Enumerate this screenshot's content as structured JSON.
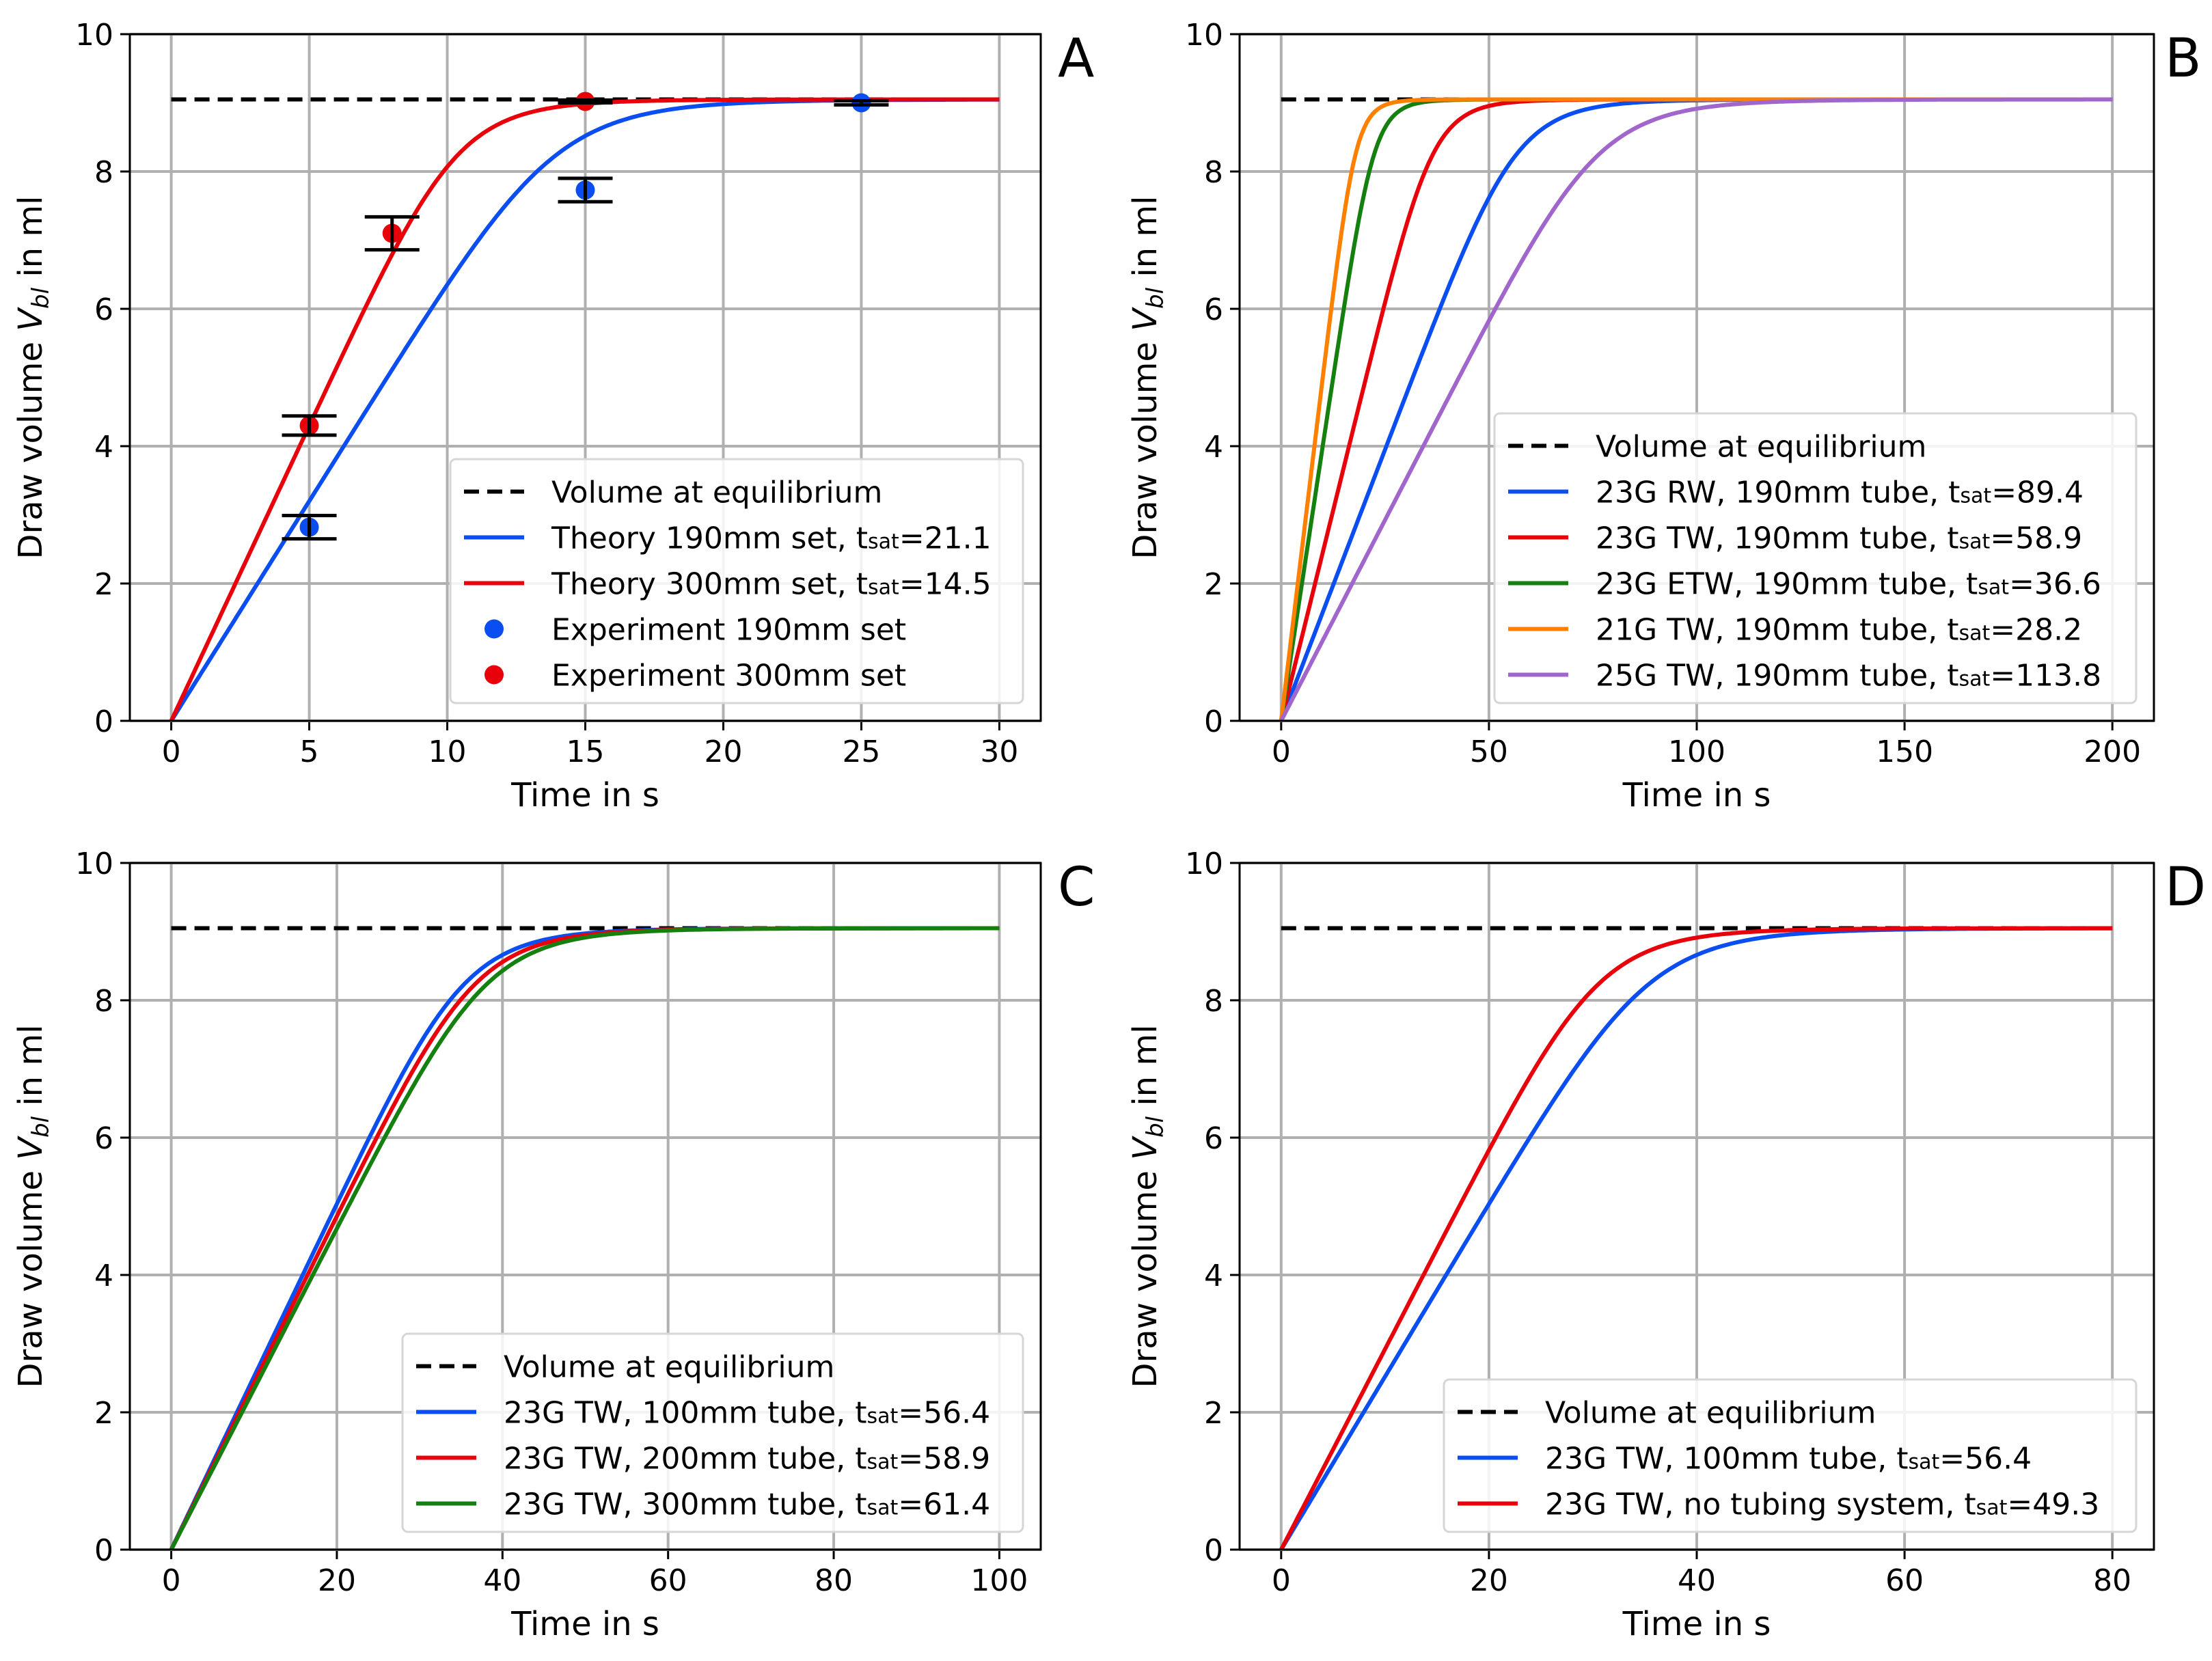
{
  "chart_data": [
    {
      "panel": "A",
      "type": "line",
      "xlabel": "Time in s",
      "ylabel": {
        "prefix": "Draw volume ",
        "var": "V",
        "sub": "bl",
        "suffix": " in ml"
      },
      "xlim": [
        -1.5,
        31.5
      ],
      "ylim": [
        0,
        10
      ],
      "xticks": [
        0,
        5,
        10,
        15,
        20,
        25,
        30
      ],
      "yticks": [
        0,
        2,
        4,
        6,
        8,
        10
      ],
      "grid": true,
      "legend_position": "bottom-right",
      "equilibrium": {
        "label": "Volume at equilibrium",
        "value": 9.05,
        "x_range": [
          0,
          30
        ],
        "color": "#000000"
      },
      "series": [
        {
          "name": "Theory 190mm set, tsat=21.1",
          "color": "#0a4df0",
          "tsat": 21.1,
          "initial_slope": 0.64,
          "x_range": [
            0,
            30
          ]
        },
        {
          "name": "Theory 300mm set, tsat=14.5",
          "color": "#e8000b",
          "tsat": 14.5,
          "initial_slope": 0.86,
          "x_range": [
            0,
            30
          ]
        }
      ],
      "scatter": [
        {
          "name": "Experiment 190mm set",
          "color": "#0a4df0",
          "points": [
            {
              "x": 5,
              "y": 2.82,
              "err": 0.17
            },
            {
              "x": 15,
              "y": 7.73,
              "err": 0.17
            },
            {
              "x": 25,
              "y": 9.0,
              "err": 0.03
            }
          ]
        },
        {
          "name": "Experiment 300mm set",
          "color": "#e8000b",
          "points": [
            {
              "x": 5,
              "y": 4.3,
              "err": 0.14
            },
            {
              "x": 8,
              "y": 7.1,
              "err": 0.24
            },
            {
              "x": 15,
              "y": 9.02,
              "err": 0.02
            }
          ]
        }
      ]
    },
    {
      "panel": "B",
      "type": "line",
      "xlabel": "Time in s",
      "ylabel": {
        "prefix": "Draw volume ",
        "var": "V",
        "sub": "bl",
        "suffix": " in ml"
      },
      "xlim": [
        -10,
        210
      ],
      "ylim": [
        0,
        10
      ],
      "xticks": [
        0,
        50,
        100,
        150,
        200
      ],
      "yticks": [
        0,
        2,
        4,
        6,
        8,
        10
      ],
      "grid": true,
      "legend_position": "bottom-right",
      "equilibrium": {
        "label": "Volume at equilibrium",
        "value": 9.05,
        "x_range": [
          0,
          200
        ],
        "color": "#000000"
      },
      "series": [
        {
          "name": "23G RW, 190mm tube, tsat=89.4",
          "color": "#0a4df0",
          "tsat": 89.4,
          "initial_slope": 0.158,
          "x_range": [
            0,
            200
          ]
        },
        {
          "name": "23G TW, 190mm tube, tsat=58.9",
          "color": "#e8000b",
          "tsat": 58.9,
          "initial_slope": 0.245,
          "x_range": [
            0,
            200
          ]
        },
        {
          "name": "23G ETW, 190mm tube, tsat=36.6",
          "color": "#15800f",
          "tsat": 36.6,
          "initial_slope": 0.4,
          "x_range": [
            0,
            200
          ]
        },
        {
          "name": "21G TW, 190mm tube, tsat=28.2",
          "color": "#ff8000",
          "tsat": 28.2,
          "initial_slope": 0.5,
          "x_range": [
            0,
            200
          ]
        },
        {
          "name": "25G TW, 190mm tube, tsat=113.8",
          "color": "#a066cc",
          "tsat": 113.8,
          "initial_slope": 0.117,
          "x_range": [
            0,
            200
          ]
        }
      ]
    },
    {
      "panel": "C",
      "type": "line",
      "xlabel": "Time in s",
      "ylabel": {
        "prefix": "Draw volume ",
        "var": "V",
        "sub": "bl",
        "suffix": " in ml"
      },
      "xlim": [
        -5,
        105
      ],
      "ylim": [
        0,
        10
      ],
      "xticks": [
        0,
        20,
        40,
        60,
        80,
        100
      ],
      "yticks": [
        0,
        2,
        4,
        6,
        8,
        10
      ],
      "grid": true,
      "legend_position": "bottom-right",
      "equilibrium": {
        "label": "Volume at equilibrium",
        "value": 9.05,
        "x_range": [
          0,
          100
        ],
        "color": "#000000"
      },
      "series": [
        {
          "name": "23G TW, 100mm tube, tsat=56.4",
          "color": "#0a4df0",
          "tsat": 56.4,
          "initial_slope": 0.252,
          "x_range": [
            0,
            100
          ]
        },
        {
          "name": "23G TW, 200mm tube, tsat=58.9",
          "color": "#e8000b",
          "tsat": 58.9,
          "initial_slope": 0.243,
          "x_range": [
            0,
            100
          ]
        },
        {
          "name": "23G TW, 300mm tube, tsat=61.4",
          "color": "#15800f",
          "tsat": 61.4,
          "initial_slope": 0.234,
          "x_range": [
            0,
            100
          ]
        }
      ]
    },
    {
      "panel": "D",
      "type": "line",
      "xlabel": "Time in s",
      "ylabel": {
        "prefix": "Draw volume ",
        "var": "V",
        "sub": "bl",
        "suffix": " in ml"
      },
      "xlim": [
        -4,
        84
      ],
      "ylim": [
        0,
        10
      ],
      "xticks": [
        0,
        20,
        40,
        60,
        80
      ],
      "yticks": [
        0,
        2,
        4,
        6,
        8,
        10
      ],
      "grid": true,
      "legend_position": "bottom-right",
      "equilibrium": {
        "label": "Volume at equilibrium",
        "value": 9.05,
        "x_range": [
          0,
          80
        ],
        "color": "#000000"
      },
      "series": [
        {
          "name": "23G TW, 100mm tube, tsat=56.4",
          "color": "#0a4df0",
          "tsat": 56.4,
          "initial_slope": 0.252,
          "x_range": [
            0,
            80
          ]
        },
        {
          "name": "23G TW, no tubing system, tsat=49.3",
          "color": "#e8000b",
          "tsat": 49.3,
          "initial_slope": 0.292,
          "x_range": [
            0,
            80
          ]
        }
      ]
    }
  ]
}
